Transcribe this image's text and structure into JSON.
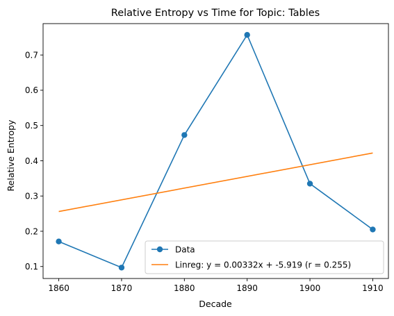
{
  "chart_data": {
    "type": "line",
    "title": "Relative Entropy vs Time for Topic: Tables",
    "xlabel": "Decade",
    "ylabel": "Relative Entropy",
    "xlim": [
      1857.5,
      1912.5
    ],
    "ylim": [
      0.066,
      0.789
    ],
    "x_ticks": [
      1860,
      1870,
      1880,
      1890,
      1900,
      1910
    ],
    "y_ticks": [
      0.1,
      0.2,
      0.3,
      0.4,
      0.5,
      0.6,
      0.7
    ],
    "grid": false,
    "legend_position": "lower-right",
    "series": [
      {
        "name": "Data",
        "color": "#1f77b4",
        "marker": "circle",
        "x": [
          1860,
          1870,
          1880,
          1890,
          1900,
          1910
        ],
        "y": [
          0.171,
          0.097,
          0.473,
          0.757,
          0.335,
          0.205
        ]
      },
      {
        "name": "Linreg: y = 0.00332x + -5.919 (r = 0.255)",
        "color": "#ff7f0e",
        "marker": "none",
        "x": [
          1860,
          1910
        ],
        "y": [
          0.256,
          0.422
        ]
      }
    ]
  }
}
